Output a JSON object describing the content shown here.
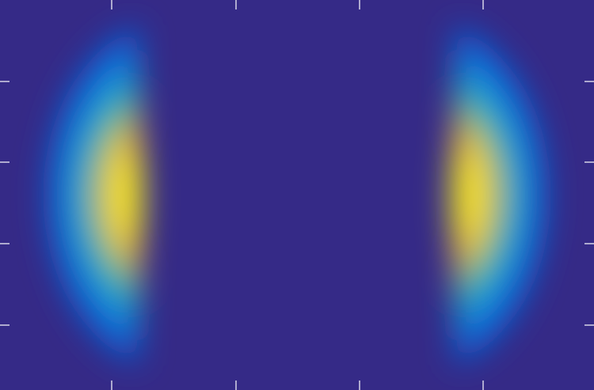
{
  "chart_data": {
    "type": "heatmap",
    "title": "",
    "xlabel": "",
    "ylabel": "",
    "colormap": "parula",
    "background_color": "#352a87",
    "axis_color": "#ffffff",
    "colorbar": false,
    "grid": false,
    "tick_labels_visible": false,
    "x_tick_count": 4,
    "y_tick_count": 4,
    "features": [
      {
        "name": "left-crescent",
        "shape": "crescent",
        "opens": "right",
        "peak_value": 1.0
      },
      {
        "name": "right-crescent",
        "shape": "crescent",
        "opens": "left",
        "peak_value": 1.0
      }
    ]
  }
}
